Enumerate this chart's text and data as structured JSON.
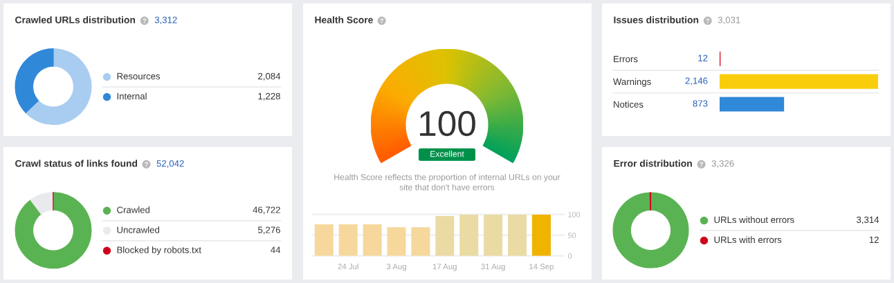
{
  "chart_data": [
    {
      "type": "donut",
      "title": "Crawled URLs distribution",
      "annotations": [
        "3,312"
      ],
      "categories": [
        "Resources",
        "Internal"
      ],
      "values": [
        2084,
        1228
      ],
      "colors": [
        "#a9cdf0",
        "#3088d8"
      ],
      "value_labels": [
        "2,084",
        "1,228"
      ],
      "legend": "right"
    },
    {
      "type": "other",
      "title": "Health Score",
      "values": [
        100
      ],
      "data_labels": true,
      "annotations": [
        "Excellent",
        "Health Score reflects the proportion of internal URLs on your\nsite that don't have errors"
      ]
    },
    {
      "type": "bar",
      "categories": [
        null,
        "24 Jul",
        null,
        "3 Aug",
        null,
        "17 Aug",
        null,
        "31 Aug",
        null,
        "14 Sep"
      ],
      "values": [
        76,
        76,
        76,
        69,
        69,
        96,
        100,
        100,
        100,
        100
      ],
      "colors": [
        "#f6d89d",
        "#f6d89d",
        "#f6d89d",
        "#f6d89d",
        "#f6d89d",
        "#e9dba3",
        "#e9dba3",
        "#e9dba3",
        "#e9dba3",
        "#efb300"
      ],
      "ylim": [
        0,
        100
      ],
      "yticks": [
        0,
        50,
        100
      ],
      "grid": "y"
    },
    {
      "type": "bar",
      "orientation": "horizontal",
      "title": "Issues distribution",
      "annotations": [
        "3,031"
      ],
      "categories": [
        "Errors",
        "Warnings",
        "Notices"
      ],
      "values": [
        12,
        2146,
        873
      ],
      "colors": [
        "#d0021b",
        "#f9cd0c",
        "#3088d8"
      ],
      "value_labels": [
        "12",
        "2,146",
        "873"
      ],
      "tick_labels": "y"
    },
    {
      "type": "donut",
      "title": "Crawl status of links found",
      "annotations": [
        "52,042"
      ],
      "categories": [
        "Crawled",
        "Uncrawled",
        "Blocked by robots.txt"
      ],
      "values": [
        46722,
        5276,
        44
      ],
      "colors": [
        "#5ab352",
        "#e8eaed",
        "#d0021b"
      ],
      "value_labels": [
        "46,722",
        "5,276",
        "44"
      ],
      "legend": "right"
    },
    {
      "type": "donut",
      "title": "Error distribution",
      "annotations": [
        "3,326"
      ],
      "categories": [
        "URLs without errors",
        "URLs with errors"
      ],
      "values": [
        3314,
        12
      ],
      "colors": [
        "#5ab352",
        "#d0021b"
      ],
      "value_labels": [
        "3,314",
        "12"
      ],
      "legend": "right"
    }
  ]
}
